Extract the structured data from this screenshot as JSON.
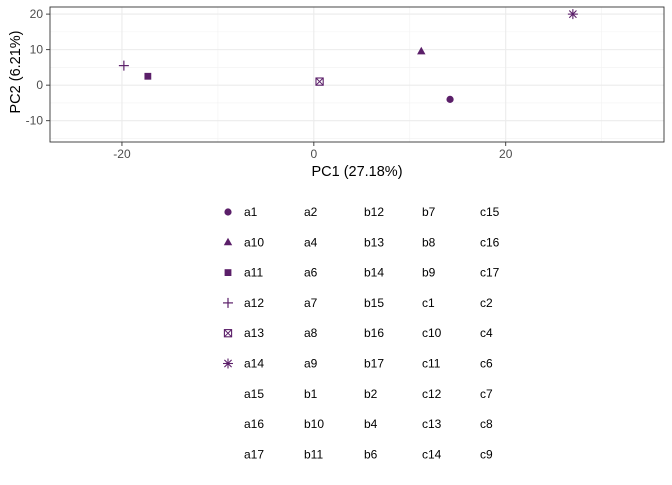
{
  "chart_data": {
    "type": "scatter",
    "xlabel": "PC1 (27.18%)",
    "ylabel": "PC2 (6.21%)",
    "xlim": [
      -27.5,
      36.5
    ],
    "ylim": [
      -16.0,
      22.0
    ],
    "x_ticks": [
      -20,
      0,
      20
    ],
    "y_ticks": [
      -10,
      0,
      10,
      20
    ],
    "grid": true,
    "legend_position": "bottom",
    "marker_color": "#5B1F69",
    "points": [
      {
        "label": "a1",
        "shape": "circle",
        "x": 14.2,
        "y": -4.0
      },
      {
        "label": "a10",
        "shape": "triangle",
        "x": 11.2,
        "y": 9.5
      },
      {
        "label": "a11",
        "shape": "square",
        "x": -17.3,
        "y": 2.5
      },
      {
        "label": "a12",
        "shape": "plus",
        "x": -19.8,
        "y": 5.5
      },
      {
        "label": "a13",
        "shape": "square-cross",
        "x": 0.6,
        "y": 1.0
      },
      {
        "label": "a14",
        "shape": "asterisk",
        "x": 27.0,
        "y": 20.0
      }
    ],
    "legend_columns": [
      [
        "a1",
        "a10",
        "a11",
        "a12",
        "a13",
        "a14",
        "a15",
        "a16",
        "a17"
      ],
      [
        "a2",
        "a4",
        "a6",
        "a7",
        "a8",
        "a9",
        "b1",
        "b10",
        "b11"
      ],
      [
        "b12",
        "b13",
        "b14",
        "b15",
        "b16",
        "b17",
        "b2",
        "b4",
        "b6"
      ],
      [
        "b7",
        "b8",
        "b9",
        "c1",
        "c10",
        "c11",
        "c12",
        "c13",
        "c14"
      ],
      [
        "c15",
        "c16",
        "c17",
        "c2",
        "c4",
        "c6",
        "c7",
        "c8",
        "c9"
      ]
    ],
    "legend_shapes": [
      "circle",
      "triangle",
      "square",
      "plus",
      "square-cross",
      "asterisk"
    ]
  }
}
